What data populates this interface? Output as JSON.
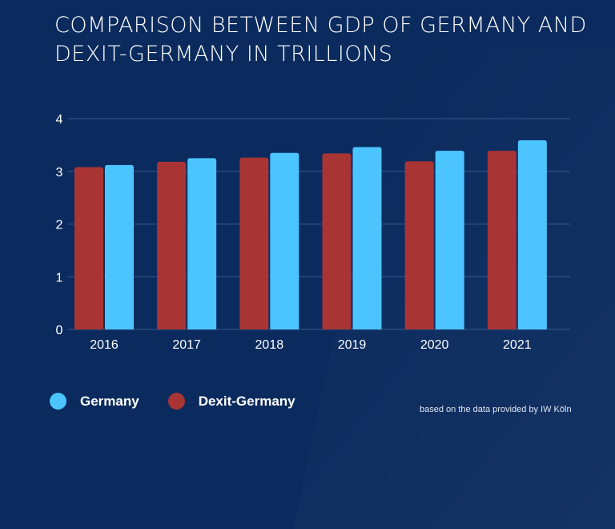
{
  "chart_data": {
    "type": "bar",
    "title": "COMPARISON BETWEEN GDP OF GERMANY AND DEXIT-GERMANY IN TRILLIONS",
    "categories": [
      "2016",
      "2017",
      "2018",
      "2019",
      "2020",
      "2021"
    ],
    "series": [
      {
        "name": "Dexit-Germany",
        "color": "#a83434",
        "values": [
          3.08,
          3.18,
          3.26,
          3.34,
          3.19,
          3.39
        ]
      },
      {
        "name": "Germany",
        "color": "#4cc4ff",
        "values": [
          3.12,
          3.25,
          3.35,
          3.46,
          3.39,
          3.59
        ]
      }
    ],
    "ylim": [
      0,
      4
    ],
    "yticks": [
      "0",
      "1",
      "2",
      "3",
      "4"
    ],
    "grid": true,
    "legend_placement": "bottom-left",
    "note": "based on the data provided by IW Köln"
  },
  "legend": [
    {
      "label": "Germany",
      "color": "#4cc4ff"
    },
    {
      "label": "Dexit-Germany",
      "color": "#a83434"
    }
  ],
  "background": "#0b2b5e"
}
